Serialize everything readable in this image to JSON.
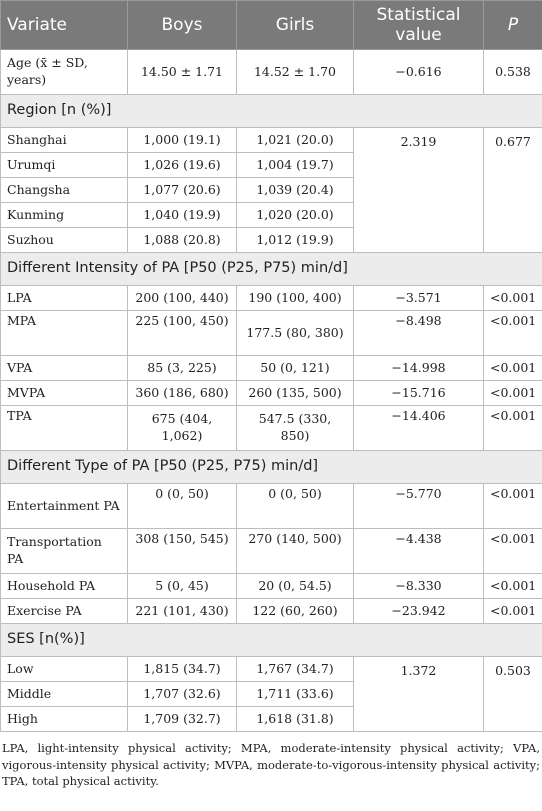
{
  "header": {
    "variate": "Variate",
    "boys": "Boys",
    "girls": "Girls",
    "stat": "Statistical value",
    "p": "P"
  },
  "age": {
    "label": "Age (x̄ ± SD, years)",
    "boys": "14.50 ± 1.71",
    "girls": "14.52 ± 1.70",
    "stat": "−0.616",
    "p": "0.538"
  },
  "region": {
    "title": "Region [n (%)]",
    "stat": "2.319",
    "p": "0.677",
    "rows": [
      {
        "label": "Shanghai",
        "boys": "1,000 (19.1)",
        "girls": "1,021 (20.0)"
      },
      {
        "label": "Urumqi",
        "boys": "1,026 (19.6)",
        "girls": "1,004 (19.7)"
      },
      {
        "label": "Changsha",
        "boys": "1,077 (20.6)",
        "girls": "1,039 (20.4)"
      },
      {
        "label": "Kunming",
        "boys": "1,040 (19.9)",
        "girls": "1,020 (20.0)"
      },
      {
        "label": "Suzhou",
        "boys": "1,088 (20.8)",
        "girls": "1,012 (19.9)"
      }
    ]
  },
  "intensity": {
    "title": "Different Intensity of PA [P50 (P25, P75) min/d]",
    "rows": [
      {
        "label": "LPA",
        "boys": "200 (100, 440)",
        "girls": "190 (100, 400)",
        "stat": "−3.571",
        "p": "<0.001"
      },
      {
        "label": "MPA",
        "boys": "225 (100, 450)",
        "girls": "177.5 (80, 380)",
        "stat": "−8.498",
        "p": "<0.001"
      },
      {
        "label": "VPA",
        "boys": "85 (3, 225)",
        "girls": "50 (0, 121)",
        "stat": "−14.998",
        "p": "<0.001"
      },
      {
        "label": "MVPA",
        "boys": "360 (186, 680)",
        "girls": "260 (135, 500)",
        "stat": "−15.716",
        "p": "<0.001"
      },
      {
        "label": "TPA",
        "boys": "675 (404, 1,062)",
        "girls": "547.5 (330, 850)",
        "stat": "−14.406",
        "p": "<0.001"
      }
    ]
  },
  "type": {
    "title": "Different Type of PA [P50 (P25, P75) min/d]",
    "rows": [
      {
        "label": "Entertainment PA",
        "boys": "0 (0, 50)",
        "girls": "0 (0, 50)",
        "stat": "−5.770",
        "p": "<0.001"
      },
      {
        "label": "Transportation PA",
        "boys": "308 (150, 545)",
        "girls": "270 (140, 500)",
        "stat": "−4.438",
        "p": "<0.001"
      },
      {
        "label": "Household PA",
        "boys": "5 (0, 45)",
        "girls": "20 (0, 54.5)",
        "stat": "−8.330",
        "p": "<0.001"
      },
      {
        "label": "Exercise PA",
        "boys": "221 (101, 430)",
        "girls": "122 (60, 260)",
        "stat": "−23.942",
        "p": "<0.001"
      }
    ]
  },
  "ses": {
    "title": "SES [n(%)]",
    "stat": "1.372",
    "p": "0.503",
    "rows": [
      {
        "label": "Low",
        "boys": "1,815 (34.7)",
        "girls": "1,767 (34.7)"
      },
      {
        "label": "Middle",
        "boys": "1,707 (32.6)",
        "girls": "1,711 (33.6)"
      },
      {
        "label": "High",
        "boys": "1,709 (32.7)",
        "girls": "1,618 (31.8)"
      }
    ]
  },
  "footnote": "LPA, light-intensity physical activity; MPA, moderate-intensity physical activity; VPA, vigorous-intensity physical activity; MVPA, moderate-to-vigorous-intensity physical activity; TPA, total physical activity."
}
